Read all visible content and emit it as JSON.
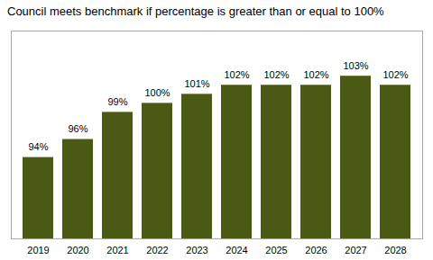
{
  "chart_data": {
    "type": "bar",
    "title": "Council meets benchmark if percentage is greater than or equal to 100%",
    "categories": [
      "2019",
      "2020",
      "2021",
      "2022",
      "2023",
      "2024",
      "2025",
      "2026",
      "2027",
      "2028"
    ],
    "values": [
      94,
      96,
      99,
      100,
      101,
      102,
      102,
      102,
      103,
      102
    ],
    "value_labels": [
      "94%",
      "96%",
      "99%",
      "100%",
      "101%",
      "102%",
      "102%",
      "102%",
      "103%",
      "102%"
    ],
    "color": "#4a5a14",
    "ylim": [
      85,
      108
    ],
    "data_labels": true,
    "tick_labels": "x",
    "grid": false
  }
}
